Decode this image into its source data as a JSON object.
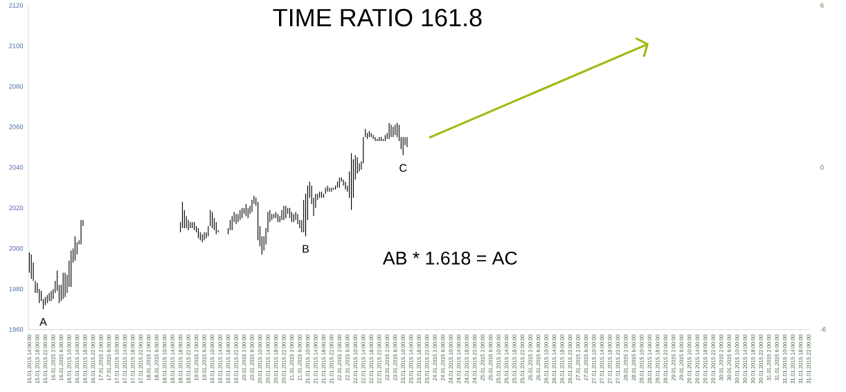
{
  "chart_data": {
    "type": "bar",
    "title": "TIME RATIO  161.8",
    "annotations": [
      "AB  *  1.618  =  AC",
      {
        "text": "A",
        "x": "2015-01-15T21:00",
        "y": 1970
      },
      {
        "text": "B",
        "x": "2015-01-21T09:00",
        "y": 2006
      },
      {
        "text": "C",
        "x": "2015-01-23T10:00",
        "y": 2046
      }
    ],
    "series": [
      {
        "color": "#000000",
        "x": [
          "2015-01-15T14:00",
          "2015-01-15T15:00",
          "2015-01-15T16:00",
          "2015-01-15T17:00",
          "2015-01-15T18:00",
          "2015-01-15T19:00",
          "2015-01-15T20:00",
          "2015-01-15T21:00",
          "2015-01-15T22:00",
          "2015-01-15T23:00",
          "2015-01-16T00:00",
          "2015-01-16T01:00",
          "2015-01-16T02:00",
          "2015-01-16T03:00",
          "2015-01-16T04:00",
          "2015-01-16T05:00",
          "2015-01-16T06:00",
          "2015-01-16T07:00",
          "2015-01-16T08:00",
          "2015-01-16T09:00",
          "2015-01-16T10:00",
          "2015-01-16T11:00",
          "2015-01-16T12:00",
          "2015-01-16T13:00",
          "2015-01-16T14:00",
          "2015-01-16T15:00",
          "2015-01-16T16:00",
          "2015-01-16T17:00",
          "2015-01-18T18:00",
          "2015-01-18T19:00",
          "2015-01-18T20:00",
          "2015-01-18T21:00",
          "2015-01-18T22:00",
          "2015-01-18T23:00",
          "2015-01-19T00:00",
          "2015-01-19T01:00",
          "2015-01-19T02:00",
          "2015-01-19T03:00",
          "2015-01-19T04:00",
          "2015-01-19T05:00",
          "2015-01-19T06:00",
          "2015-01-19T07:00",
          "2015-01-19T08:00",
          "2015-01-19T09:00",
          "2015-01-19T10:00",
          "2015-01-19T11:00",
          "2015-01-19T12:00",
          "2015-01-19T13:00",
          "2015-01-19T18:00",
          "2015-01-19T19:00",
          "2015-01-19T20:00",
          "2015-01-19T21:00",
          "2015-01-19T22:00",
          "2015-01-19T23:00",
          "2015-01-20T00:00",
          "2015-01-20T01:00",
          "2015-01-20T02:00",
          "2015-01-20T03:00",
          "2015-01-20T04:00",
          "2015-01-20T05:00",
          "2015-01-20T06:00",
          "2015-01-20T07:00",
          "2015-01-20T08:00",
          "2015-01-20T09:00",
          "2015-01-20T10:00",
          "2015-01-20T11:00",
          "2015-01-20T12:00",
          "2015-01-20T13:00",
          "2015-01-20T14:00",
          "2015-01-20T15:00",
          "2015-01-20T16:00",
          "2015-01-20T17:00",
          "2015-01-20T18:00",
          "2015-01-20T19:00",
          "2015-01-20T20:00",
          "2015-01-20T21:00",
          "2015-01-20T22:00",
          "2015-01-20T23:00",
          "2015-01-21T00:00",
          "2015-01-21T01:00",
          "2015-01-21T02:00",
          "2015-01-21T03:00",
          "2015-01-21T04:00",
          "2015-01-21T05:00",
          "2015-01-21T06:00",
          "2015-01-21T07:00",
          "2015-01-21T08:00",
          "2015-01-21T09:00",
          "2015-01-21T10:00",
          "2015-01-21T11:00",
          "2015-01-21T12:00",
          "2015-01-21T13:00",
          "2015-01-21T14:00",
          "2015-01-21T15:00",
          "2015-01-21T16:00",
          "2015-01-21T17:00",
          "2015-01-21T18:00",
          "2015-01-21T19:00",
          "2015-01-21T20:00",
          "2015-01-21T21:00",
          "2015-01-21T22:00",
          "2015-01-21T23:00",
          "2015-01-22T00:00",
          "2015-01-22T01:00",
          "2015-01-22T02:00",
          "2015-01-22T03:00",
          "2015-01-22T04:00",
          "2015-01-22T05:00",
          "2015-01-22T06:00",
          "2015-01-22T07:00",
          "2015-01-22T08:00",
          "2015-01-22T09:00",
          "2015-01-22T10:00",
          "2015-01-22T11:00",
          "2015-01-22T12:00",
          "2015-01-22T13:00",
          "2015-01-22T14:00",
          "2015-01-22T15:00",
          "2015-01-22T16:00",
          "2015-01-22T17:00",
          "2015-01-22T18:00",
          "2015-01-22T19:00",
          "2015-01-22T20:00",
          "2015-01-22T21:00",
          "2015-01-22T22:00",
          "2015-01-22T23:00",
          "2015-01-23T00:00",
          "2015-01-23T01:00",
          "2015-01-23T02:00",
          "2015-01-23T03:00",
          "2015-01-23T04:00",
          "2015-01-23T05:00",
          "2015-01-23T06:00",
          "2015-01-23T07:00",
          "2015-01-23T08:00",
          "2015-01-23T09:00",
          "2015-01-23T10:00",
          "2015-01-23T11:00",
          "2015-01-23T12:00"
        ],
        "base": [
          1988,
          1985,
          1984,
          1978,
          1978,
          1973,
          1974,
          1970,
          1972,
          1973,
          1974,
          1974,
          1975,
          1978,
          1979,
          1973,
          1974,
          1975,
          1976,
          1978,
          1981,
          1981,
          1993,
          1994,
          1997,
          2002,
          2002,
          2011,
          2008,
          2010,
          2010,
          2010,
          2009,
          2010,
          2010,
          2009,
          2008,
          2005,
          2004,
          2003,
          2004,
          2005,
          2006,
          2011,
          2010,
          2009,
          2007,
          2008,
          2007,
          2009,
          2009,
          2013,
          2012,
          2013,
          2014,
          2015,
          2017,
          2016,
          2015,
          2017,
          2018,
          2022,
          2021,
          2004,
          2001,
          1997,
          1999,
          2002,
          2008,
          2013,
          2014,
          2015,
          2015,
          2013,
          2013,
          2014,
          2014,
          2015,
          2017,
          2015,
          2013,
          2013,
          2014,
          2012,
          2010,
          2008,
          2008,
          2006,
          2014,
          2025,
          2022,
          2016,
          2020,
          2024,
          2025,
          2025,
          2025,
          2027,
          2028,
          2028,
          2028,
          2029,
          2029,
          2030,
          2030,
          2033,
          2031,
          2029,
          2028,
          2025,
          2019,
          2025,
          2034,
          2037,
          2038,
          2039,
          2042,
          2055,
          2054,
          2055,
          2055,
          2054,
          2053,
          2053,
          2053,
          2053,
          2053,
          2053,
          2054,
          2054,
          2055,
          2055,
          2056,
          2055,
          2053,
          2049,
          2046,
          2051,
          2050
        ],
        "values": [
          10,
          12,
          9,
          6,
          5,
          7,
          5,
          5,
          4,
          4,
          4,
          5,
          5,
          6,
          10,
          9,
          8,
          13,
          12,
          9,
          13,
          18,
          7,
          12,
          6,
          2,
          12,
          3,
          5,
          13,
          9,
          6,
          5,
          3,
          3,
          4,
          3,
          5,
          4,
          4,
          4,
          3,
          5,
          8,
          8,
          6,
          6,
          1,
          3,
          5,
          7,
          5,
          5,
          4,
          5,
          5,
          3,
          6,
          5,
          4,
          6,
          4,
          4,
          19,
          10,
          9,
          7,
          8,
          10,
          6,
          3,
          2,
          3,
          4,
          3,
          5,
          7,
          6,
          3,
          5,
          5,
          4,
          4,
          5,
          4,
          6,
          16,
          21,
          17,
          8,
          9,
          9,
          7,
          3,
          3,
          3,
          2,
          3,
          3,
          2,
          2,
          1,
          2,
          3,
          5,
          2,
          3,
          4,
          3,
          13,
          28,
          19,
          12,
          8,
          4,
          4,
          13,
          4,
          3,
          3,
          2,
          2,
          2,
          1,
          2,
          2,
          1,
          3,
          3,
          8,
          6,
          5,
          5,
          7,
          8,
          6,
          9,
          4,
          5
        ]
      }
    ],
    "ylim": [
      1960,
      2120
    ],
    "yticks": [
      1960,
      1980,
      2000,
      2020,
      2040,
      2060,
      2080,
      2100,
      2120
    ],
    "y2lim": [
      -6,
      6
    ],
    "y2ticks": [
      -6,
      0,
      6
    ],
    "xlim": [
      "2015-01-15T13:30",
      "2015-01-31T22:30"
    ],
    "xticks": [
      {
        "value": "2015-01-15T14:00",
        "label": "15.01.2015 14:00:00"
      },
      {
        "value": "2015-01-15T18:00",
        "label": "15.01.2015 18:00:00"
      },
      {
        "value": "2015-01-15T22:00",
        "label": "15.01.2015 22:00:00"
      },
      {
        "value": "2015-01-16T02:00",
        "label": "16.01.2015 2:00:00"
      },
      {
        "value": "2015-01-16T06:00",
        "label": "16.01.2015 6:00:00"
      },
      {
        "value": "2015-01-16T10:00",
        "label": "16.01.2015 10:00:00"
      },
      {
        "value": "2015-01-16T14:00",
        "label": "16.01.2015 14:00:00"
      },
      {
        "value": "2015-01-16T18:00",
        "label": "16.01.2015 18:00:00"
      },
      {
        "value": "2015-01-16T22:00",
        "label": "16.01.2015 22:00:00"
      },
      {
        "value": "2015-01-17T02:00",
        "label": "17.01.2015 2:00:00"
      },
      {
        "value": "2015-01-17T06:00",
        "label": "17.01.2015 6:00:00"
      },
      {
        "value": "2015-01-17T10:00",
        "label": "17.01.2015 10:00:00"
      },
      {
        "value": "2015-01-17T14:00",
        "label": "17.01.2015 14:00:00"
      },
      {
        "value": "2015-01-17T18:00",
        "label": "17.01.2015 18:00:00"
      },
      {
        "value": "2015-01-17T22:00",
        "label": "17.01.2015 22:00:00"
      },
      {
        "value": "2015-01-18T02:00",
        "label": "18.01.2015 2:00:00"
      },
      {
        "value": "2015-01-18T06:00",
        "label": "18.01.2015 6:00:00"
      },
      {
        "value": "2015-01-18T10:00",
        "label": "18.01.2015 10:00:00"
      },
      {
        "value": "2015-01-18T14:00",
        "label": "18.01.2015 14:00:00"
      },
      {
        "value": "2015-01-18T18:00",
        "label": "18.01.2015 18:00:00"
      },
      {
        "value": "2015-01-18T22:00",
        "label": "18.01.2015 22:00:00"
      },
      {
        "value": "2015-01-19T02:00",
        "label": "19.01.2015 2:00:00"
      },
      {
        "value": "2015-01-19T06:00",
        "label": "19.01.2015 6:00:00"
      },
      {
        "value": "2015-01-19T10:00",
        "label": "19.01.2015 10:00:00"
      },
      {
        "value": "2015-01-19T14:00",
        "label": "19.01.2015 14:00:00"
      },
      {
        "value": "2015-01-19T18:00",
        "label": "19.01.2015 18:00:00"
      },
      {
        "value": "2015-01-19T22:00",
        "label": "19.01.2015 22:00:00"
      },
      {
        "value": "2015-01-20T02:00",
        "label": "20.01.2015 2:00:00"
      },
      {
        "value": "2015-01-20T06:00",
        "label": "20.01.2015 6:00:00"
      },
      {
        "value": "2015-01-20T10:00",
        "label": "20.01.2015 10:00:00"
      },
      {
        "value": "2015-01-20T14:00",
        "label": "20.01.2015 14:00:00"
      },
      {
        "value": "2015-01-20T18:00",
        "label": "20.01.2015 18:00:00"
      },
      {
        "value": "2015-01-20T22:00",
        "label": "20.01.2015 22:00:00"
      },
      {
        "value": "2015-01-21T02:00",
        "label": "21.01.2015 2:00:00"
      },
      {
        "value": "2015-01-21T06:00",
        "label": "21.01.2015 6:00:00"
      },
      {
        "value": "2015-01-21T10:00",
        "label": "21.01.2015 10:00:00"
      },
      {
        "value": "2015-01-21T14:00",
        "label": "21.01.2015 14:00:00"
      },
      {
        "value": "2015-01-21T18:00",
        "label": "21.01.2015 18:00:00"
      },
      {
        "value": "2015-01-21T22:00",
        "label": "21.01.2015 22:00:00"
      },
      {
        "value": "2015-01-22T02:00",
        "label": "22.01.2015 2:00:00"
      },
      {
        "value": "2015-01-22T06:00",
        "label": "22.01.2015 6:00:00"
      },
      {
        "value": "2015-01-22T10:00",
        "label": "22.01.2015 10:00:00"
      },
      {
        "value": "2015-01-22T14:00",
        "label": "22.01.2015 14:00:00"
      },
      {
        "value": "2015-01-22T18:00",
        "label": "22.01.2015 18:00:00"
      },
      {
        "value": "2015-01-22T22:00",
        "label": "22.01.2015 22:00:00"
      },
      {
        "value": "2015-01-23T02:00",
        "label": "23.01.2015 2:00:00"
      },
      {
        "value": "2015-01-23T06:00",
        "label": "23.01.2015 6:00:00"
      },
      {
        "value": "2015-01-23T10:00",
        "label": "23.01.2015 10:00:00"
      },
      {
        "value": "2015-01-23T14:00",
        "label": "23.01.2015 14:00:00"
      },
      {
        "value": "2015-01-23T18:00",
        "label": "23.01.2015 18:00:00"
      },
      {
        "value": "2015-01-23T22:00",
        "label": "23.01.2015 22:00:00"
      },
      {
        "value": "2015-01-24T02:00",
        "label": "24.01.2015 2:00:00"
      },
      {
        "value": "2015-01-24T06:00",
        "label": "24.01.2015 6:00:00"
      },
      {
        "value": "2015-01-24T10:00",
        "label": "24.01.2015 10:00:00"
      },
      {
        "value": "2015-01-24T14:00",
        "label": "24.01.2015 14:00:00"
      },
      {
        "value": "2015-01-24T18:00",
        "label": "24.01.2015 18:00:00"
      },
      {
        "value": "2015-01-24T22:00",
        "label": "24.01.2015 22:00:00"
      },
      {
        "value": "2015-01-25T02:00",
        "label": "25.01.2015 2:00:00"
      },
      {
        "value": "2015-01-25T06:00",
        "label": "25.01.2015 6:00:00"
      },
      {
        "value": "2015-01-25T10:00",
        "label": "25.01.2015 10:00:00"
      },
      {
        "value": "2015-01-25T14:00",
        "label": "25.01.2015 14:00:00"
      },
      {
        "value": "2015-01-25T18:00",
        "label": "25.01.2015 18:00:00"
      },
      {
        "value": "2015-01-25T22:00",
        "label": "25.01.2015 22:00:00"
      },
      {
        "value": "2015-01-26T02:00",
        "label": "26.01.2015 2:00:00"
      },
      {
        "value": "2015-01-26T06:00",
        "label": "26.01.2015 6:00:00"
      },
      {
        "value": "2015-01-26T10:00",
        "label": "26.01.2015 10:00:00"
      },
      {
        "value": "2015-01-26T14:00",
        "label": "26.01.2015 14:00:00"
      },
      {
        "value": "2015-01-26T18:00",
        "label": "26.01.2015 18:00:00"
      },
      {
        "value": "2015-01-26T22:00",
        "label": "26.01.2015 22:00:00"
      },
      {
        "value": "2015-01-27T02:00",
        "label": "27.01.2015 2:00:00"
      },
      {
        "value": "2015-01-27T06:00",
        "label": "27.01.2015 6:00:00"
      },
      {
        "value": "2015-01-27T10:00",
        "label": "27.01.2015 10:00:00"
      },
      {
        "value": "2015-01-27T14:00",
        "label": "27.01.2015 14:00:00"
      },
      {
        "value": "2015-01-27T18:00",
        "label": "27.01.2015 18:00:00"
      },
      {
        "value": "2015-01-27T22:00",
        "label": "27.01.2015 22:00:00"
      },
      {
        "value": "2015-01-28T02:00",
        "label": "28.01.2015 2:00:00"
      },
      {
        "value": "2015-01-28T06:00",
        "label": "28.01.2015 6:00:00"
      },
      {
        "value": "2015-01-28T10:00",
        "label": "28.01.2015 10:00:00"
      },
      {
        "value": "2015-01-28T14:00",
        "label": "28.01.2015 14:00:00"
      },
      {
        "value": "2015-01-28T18:00",
        "label": "28.01.2015 18:00:00"
      },
      {
        "value": "2015-01-28T22:00",
        "label": "28.01.2015 22:00:00"
      },
      {
        "value": "2015-01-29T02:00",
        "label": "29.01.2015 2:00:00"
      },
      {
        "value": "2015-01-29T06:00",
        "label": "29.01.2015 6:00:00"
      },
      {
        "value": "2015-01-29T10:00",
        "label": "29.01.2015 10:00:00"
      },
      {
        "value": "2015-01-29T14:00",
        "label": "29.01.2015 14:00:00"
      },
      {
        "value": "2015-01-29T18:00",
        "label": "29.01.2015 18:00:00"
      },
      {
        "value": "2015-01-29T22:00",
        "label": "29.01.2015 22:00:00"
      },
      {
        "value": "2015-01-30T02:00",
        "label": "30.01.2015 2:00:00"
      },
      {
        "value": "2015-01-30T06:00",
        "label": "30.01.2015 6:00:00"
      },
      {
        "value": "2015-01-30T10:00",
        "label": "30.01.2015 10:00:00"
      },
      {
        "value": "2015-01-30T14:00",
        "label": "30.01.2015 14:00:00"
      },
      {
        "value": "2015-01-30T18:00",
        "label": "30.01.2015 18:00:00"
      },
      {
        "value": "2015-01-30T22:00",
        "label": "30.01.2015 22:00:00"
      },
      {
        "value": "2015-01-31T02:00",
        "label": "31.01.2015 2:00:00"
      },
      {
        "value": "2015-01-31T06:00",
        "label": "31.01.2015 6:00:00"
      },
      {
        "value": "2015-01-31T10:00",
        "label": "31.01.2015 10:00:00"
      },
      {
        "value": "2015-01-31T14:00",
        "label": "31.01.2015 14:00:00"
      },
      {
        "value": "2015-01-31T18:00",
        "label": "31.01.2015 18:00:00"
      },
      {
        "value": "2015-01-31T22:00",
        "label": "31.01.2015 22:00:00"
      }
    ]
  }
}
